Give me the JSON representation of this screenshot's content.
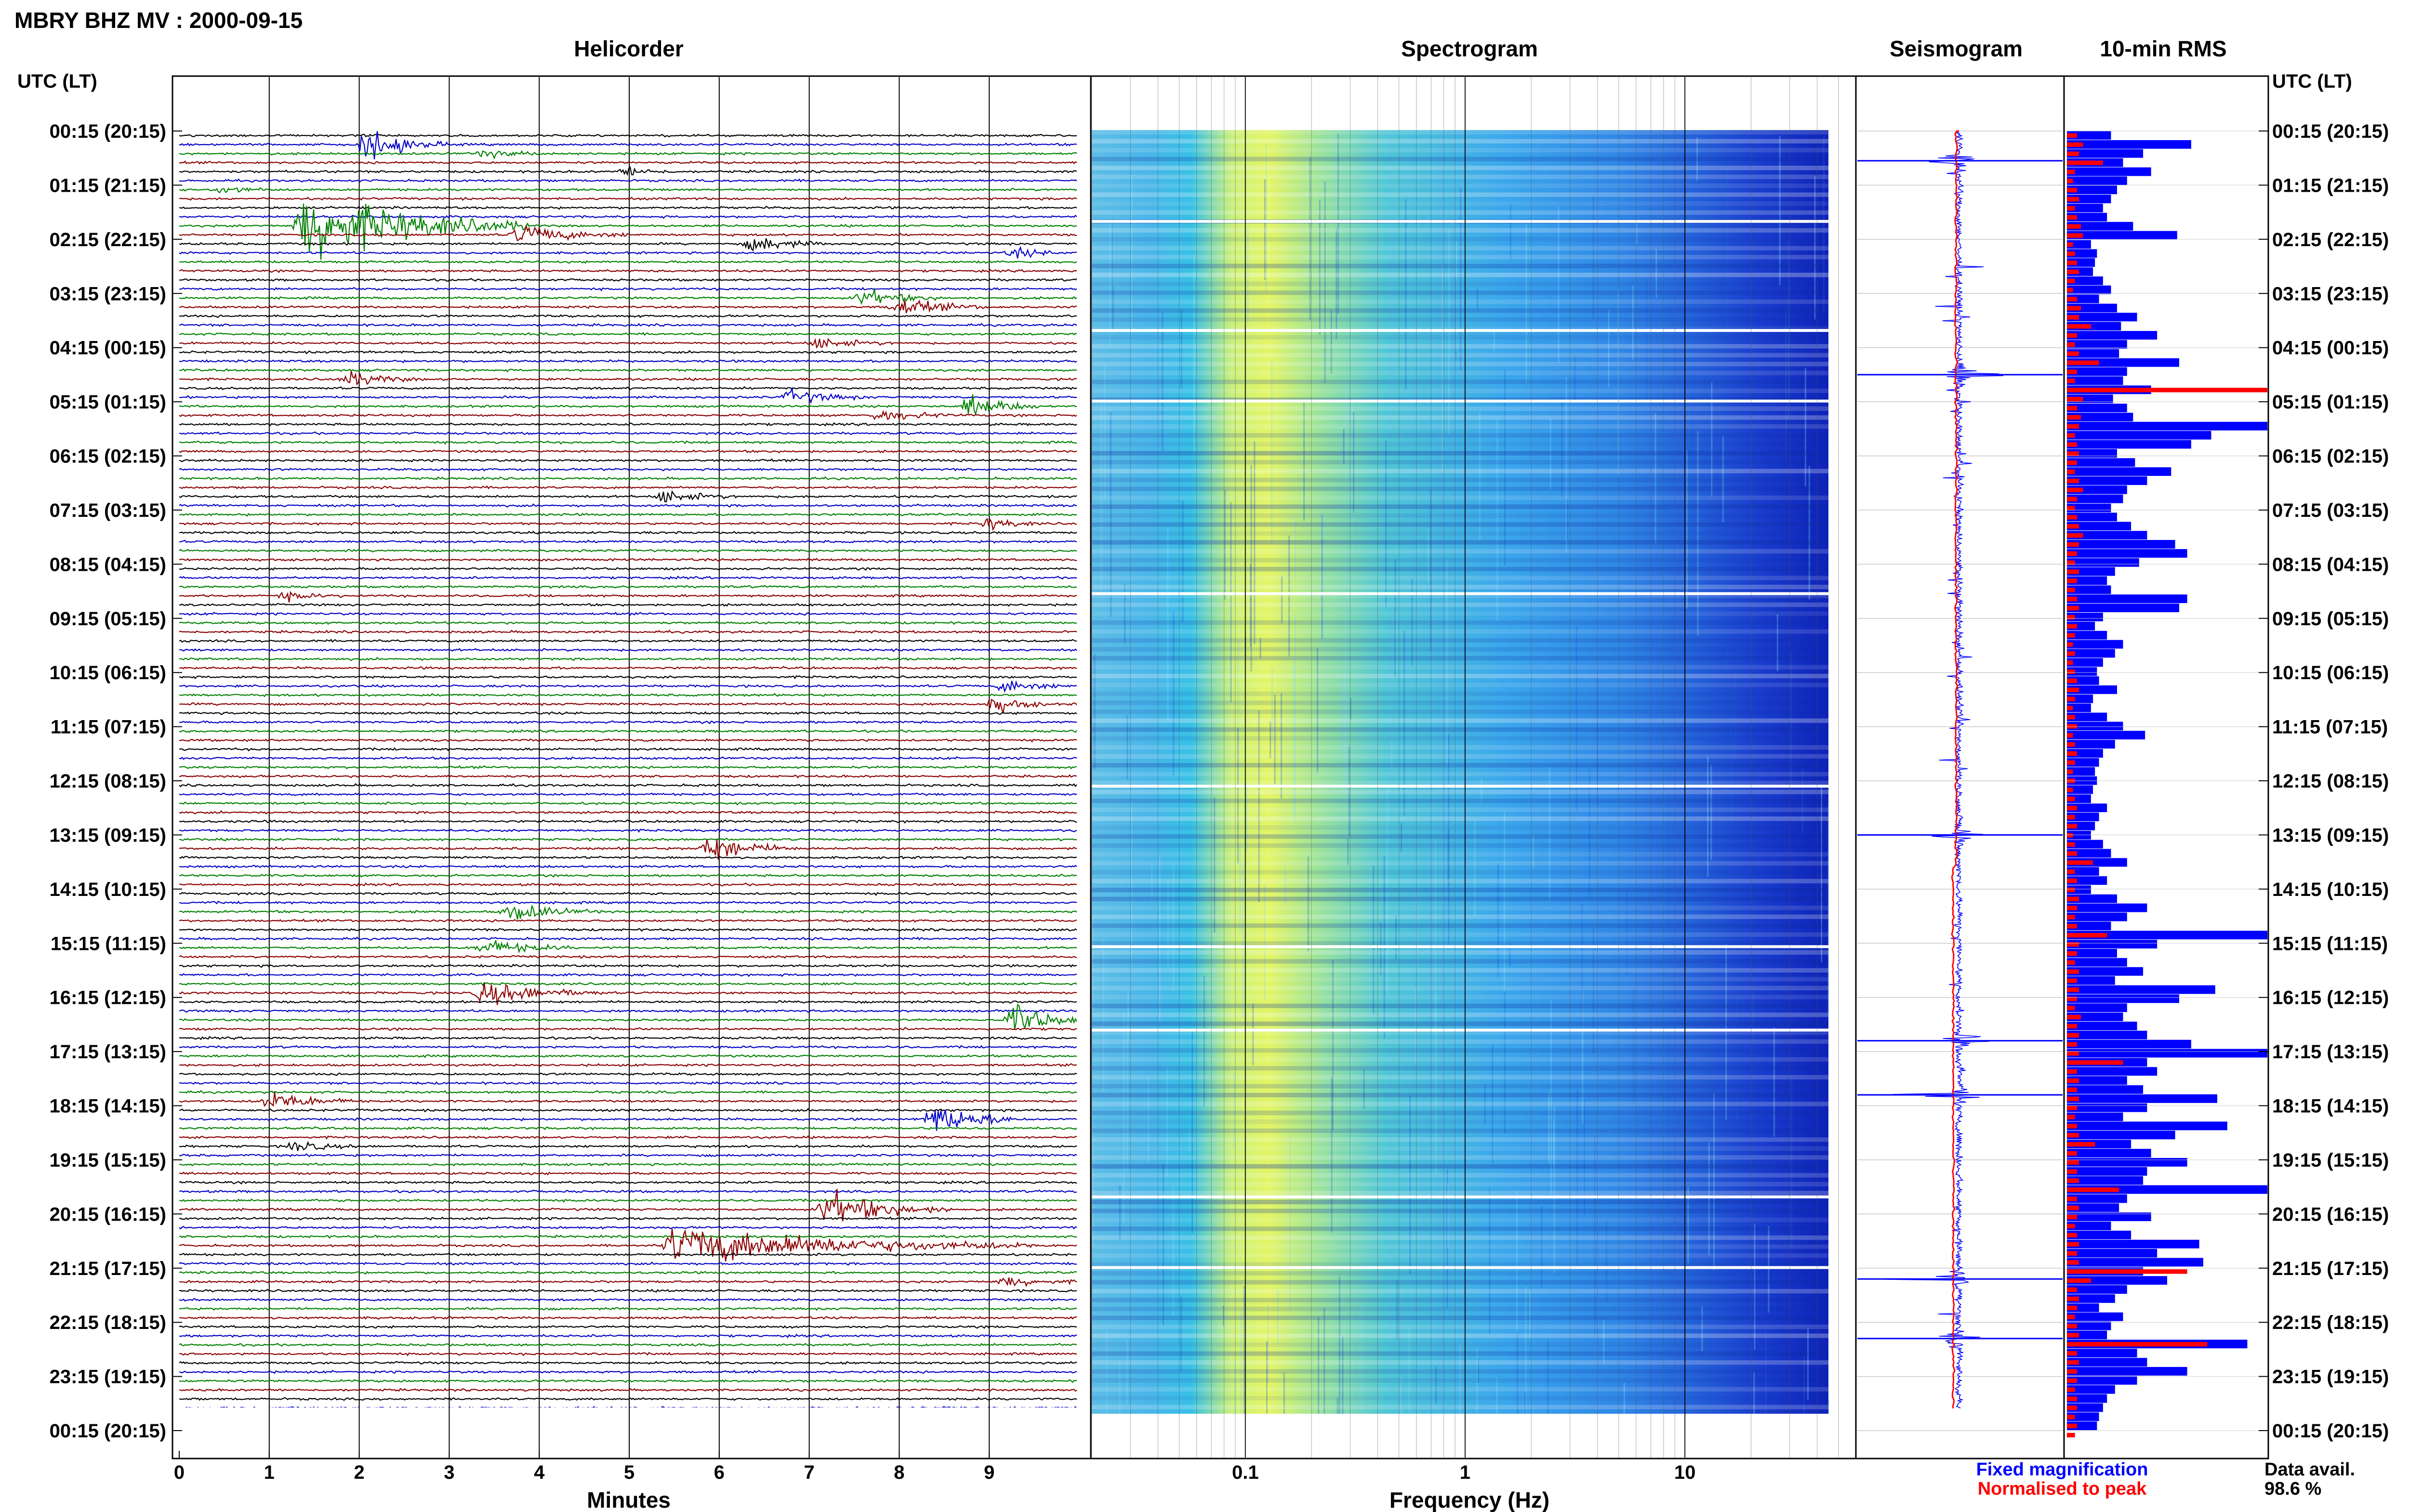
{
  "header": {
    "title": "MBRY BHZ MV : 2000-09-15",
    "time_axis_label": "UTC (LT)"
  },
  "panels": {
    "helicorder": "Helicorder",
    "spectrogram": "Spectrogram",
    "seismogram": "Seismogram",
    "rms": "10-min RMS"
  },
  "legend": {
    "fixed": "Fixed magnification",
    "normalised": "Normalised to peak",
    "availability_label": "Data avail.",
    "availability_value": "98.6 %"
  },
  "colors": {
    "trace_cycle": [
      "#000000",
      "#0000c8",
      "#008000",
      "#8b0000"
    ],
    "rms_fixed": "#0000ff",
    "rms_normalised": "#ff0000",
    "seismogram_trace": "#0000ff",
    "seismogram_envelope": "#ff0000"
  },
  "chart_data": [
    {
      "type": "line",
      "panel": "Helicorder",
      "xlabel": "Minutes",
      "xlim": [
        0,
        10
      ],
      "x_ticks": [
        "0",
        "1",
        "2",
        "3",
        "4",
        "5",
        "6",
        "7",
        "8",
        "9"
      ],
      "y_tick_labels": [
        "00:15 (20:15)",
        "01:15 (21:15)",
        "02:15 (22:15)",
        "03:15 (23:15)",
        "04:15 (00:15)",
        "05:15 (01:15)",
        "06:15 (02:15)",
        "07:15 (03:15)",
        "08:15 (04:15)",
        "09:15 (05:15)",
        "10:15 (06:15)",
        "11:15 (07:15)",
        "12:15 (08:15)",
        "13:15 (09:15)",
        "14:15 (10:15)",
        "15:15 (11:15)",
        "16:15 (12:15)",
        "17:15 (13:15)",
        "18:15 (14:15)",
        "19:15 (15:15)",
        "20:15 (16:15)",
        "21:15 (17:15)",
        "22:15 (18:15)",
        "23:15 (19:15)",
        "00:15 (20:15)"
      ],
      "rows_per_hour": 6,
      "rows": 144,
      "events": [
        {
          "row": 1,
          "minute": 2.1,
          "amplitude": 2.2,
          "width": 0.9
        },
        {
          "row": 2,
          "minute": 3.4,
          "amplitude": 0.6,
          "width": 0.7
        },
        {
          "row": 4,
          "minute": 5.0,
          "amplitude": 0.7,
          "width": 0.5
        },
        {
          "row": 6,
          "minute": 0.5,
          "amplitude": 0.6,
          "width": 0.5
        },
        {
          "row": 10,
          "minute": 1.4,
          "amplitude": 5.5,
          "width": 2.5
        },
        {
          "row": 11,
          "minute": 3.8,
          "amplitude": 1.4,
          "width": 1.2
        },
        {
          "row": 12,
          "minute": 6.4,
          "amplitude": 1.2,
          "width": 0.8
        },
        {
          "row": 13,
          "minute": 9.3,
          "amplitude": 0.7,
          "width": 0.6
        },
        {
          "row": 18,
          "minute": 7.6,
          "amplitude": 1.2,
          "width": 0.9
        },
        {
          "row": 19,
          "minute": 8.0,
          "amplitude": 1.3,
          "width": 1.0
        },
        {
          "row": 23,
          "minute": 7.1,
          "amplitude": 0.8,
          "width": 0.9
        },
        {
          "row": 27,
          "minute": 1.9,
          "amplitude": 1.1,
          "width": 0.8
        },
        {
          "row": 29,
          "minute": 6.8,
          "amplitude": 1.0,
          "width": 0.9
        },
        {
          "row": 31,
          "minute": 7.8,
          "amplitude": 0.9,
          "width": 0.9
        },
        {
          "row": 30,
          "minute": 8.8,
          "amplitude": 1.6,
          "width": 0.8
        },
        {
          "row": 40,
          "minute": 5.4,
          "amplitude": 1.0,
          "width": 0.8
        },
        {
          "row": 43,
          "minute": 9.0,
          "amplitude": 0.8,
          "width": 0.6
        },
        {
          "row": 51,
          "minute": 1.2,
          "amplitude": 0.6,
          "width": 0.6
        },
        {
          "row": 61,
          "minute": 9.2,
          "amplitude": 1.0,
          "width": 0.7
        },
        {
          "row": 63,
          "minute": 9.1,
          "amplitude": 1.2,
          "width": 0.6
        },
        {
          "row": 79,
          "minute": 5.9,
          "amplitude": 2.0,
          "width": 1.0
        },
        {
          "row": 86,
          "minute": 3.7,
          "amplitude": 1.3,
          "width": 1.0
        },
        {
          "row": 90,
          "minute": 3.4,
          "amplitude": 1.2,
          "width": 1.0
        },
        {
          "row": 95,
          "minute": 3.4,
          "amplitude": 1.8,
          "width": 1.3
        },
        {
          "row": 98,
          "minute": 9.3,
          "amplitude": 2.4,
          "width": 0.8
        },
        {
          "row": 107,
          "minute": 1.0,
          "amplitude": 1.4,
          "width": 1.0
        },
        {
          "row": 109,
          "minute": 8.4,
          "amplitude": 2.4,
          "width": 1.0
        },
        {
          "row": 112,
          "minute": 1.3,
          "amplitude": 0.8,
          "width": 0.7
        },
        {
          "row": 119,
          "minute": 7.2,
          "amplitude": 2.6,
          "width": 1.4
        },
        {
          "row": 123,
          "minute": 5.5,
          "amplitude": 3.0,
          "width": 4.0
        },
        {
          "row": 127,
          "minute": 9.2,
          "amplitude": 0.8,
          "width": 0.8
        }
      ]
    },
    {
      "type": "heatmap",
      "panel": "Spectrogram",
      "xlabel": "Frequency (Hz)",
      "x_scale": "log",
      "xlim": [
        0.02,
        60
      ],
      "x_tick_labels": [
        "0.1",
        "1",
        "10"
      ],
      "dominant_band_hz": [
        0.15,
        0.4
      ],
      "rolloff_hz": 25
    },
    {
      "type": "line",
      "panel": "Seismogram",
      "series": [
        {
          "name": "Fixed magnification",
          "color": "#0000ff"
        },
        {
          "name": "Normalised to peak",
          "color": "#ff0000"
        }
      ],
      "large_events_hours": [
        0.55,
        4.5,
        13.0,
        16.8,
        17.8,
        21.2,
        22.3
      ]
    },
    {
      "type": "bar",
      "panel": "10-min RMS",
      "orientation": "horizontal",
      "series": [
        {
          "name": "Fixed magnification",
          "values": [
            0.22,
            0.62,
            0.38,
            0.28,
            0.42,
            0.3,
            0.25,
            0.22,
            0.18,
            0.2,
            0.33,
            0.55,
            0.12,
            0.15,
            0.14,
            0.13,
            0.18,
            0.22,
            0.16,
            0.25,
            0.35,
            0.27,
            0.45,
            0.3,
            0.26,
            0.56,
            0.3,
            0.28,
            0.42,
            0.23,
            0.3,
            0.33,
            1.0,
            0.72,
            0.62,
            0.25,
            0.34,
            0.52,
            0.4,
            0.3,
            0.28,
            0.22,
            0.25,
            0.32,
            0.4,
            0.54,
            0.6,
            0.36,
            0.24,
            0.2,
            0.22,
            0.6,
            0.56,
            0.18,
            0.14,
            0.2,
            0.28,
            0.24,
            0.18,
            0.15,
            0.16,
            0.25,
            0.13,
            0.12,
            0.2,
            0.28,
            0.39,
            0.24,
            0.18,
            0.16,
            0.14,
            0.15,
            0.13,
            0.12,
            0.2,
            0.16,
            0.14,
            0.12,
            0.18,
            0.22,
            0.3,
            0.16,
            0.2,
            0.12,
            0.25,
            0.4,
            0.3,
            0.22,
            1.0,
            0.45,
            0.25,
            0.3,
            0.38,
            0.24,
            0.74,
            0.56,
            0.3,
            0.28,
            0.35,
            0.4,
            0.62,
            1.0,
            0.4,
            0.45,
            0.3,
            0.38,
            0.75,
            0.4,
            0.28,
            0.8,
            0.54,
            0.32,
            0.42,
            0.6,
            0.4,
            0.38,
            1.0,
            0.3,
            0.26,
            0.42,
            0.22,
            0.32,
            0.66,
            0.45,
            0.68,
            0.38,
            0.5,
            0.3,
            0.24,
            0.16,
            0.28,
            0.22,
            0.2,
            0.9,
            0.35,
            0.4,
            0.6,
            0.35,
            0.24,
            0.2,
            0.18,
            0.16,
            0.15
          ]
        },
        {
          "name": "Normalised to peak",
          "values": [
            0.05,
            0.08,
            0.06,
            0.18,
            0.04,
            0.03,
            0.05,
            0.06,
            0.04,
            0.05,
            0.07,
            0.08,
            0.03,
            0.04,
            0.05,
            0.06,
            0.04,
            0.03,
            0.05,
            0.07,
            0.06,
            0.12,
            0.05,
            0.04,
            0.06,
            0.16,
            0.05,
            0.04,
            1.0,
            0.08,
            0.05,
            0.07,
            0.06,
            0.04,
            0.05,
            0.06,
            0.05,
            0.04,
            0.06,
            0.08,
            0.05,
            0.04,
            0.05,
            0.06,
            0.08,
            0.06,
            0.05,
            0.04,
            0.06,
            0.05,
            0.04,
            0.05,
            0.06,
            0.04,
            0.05,
            0.04,
            0.03,
            0.04,
            0.03,
            0.04,
            0.05,
            0.06,
            0.04,
            0.03,
            0.04,
            0.05,
            0.03,
            0.04,
            0.05,
            0.04,
            0.03,
            0.04,
            0.03,
            0.04,
            0.05,
            0.04,
            0.05,
            0.03,
            0.04,
            0.05,
            0.13,
            0.04,
            0.05,
            0.04,
            0.06,
            0.05,
            0.04,
            0.05,
            0.2,
            0.06,
            0.05,
            0.04,
            0.06,
            0.05,
            0.06,
            0.05,
            0.04,
            0.07,
            0.05,
            0.06,
            0.05,
            0.06,
            0.28,
            0.05,
            0.06,
            0.05,
            0.06,
            0.05,
            0.04,
            0.05,
            0.06,
            0.14,
            0.05,
            0.06,
            0.05,
            0.06,
            0.26,
            0.05,
            0.06,
            0.05,
            0.04,
            0.05,
            0.06,
            0.05,
            0.06,
            0.6,
            0.12,
            0.05,
            0.06,
            0.05,
            0.04,
            0.05,
            0.06,
            0.7,
            0.05,
            0.06,
            0.05,
            0.05,
            0.04,
            0.05,
            0.05,
            0.04,
            0.05,
            0.04
          ]
        }
      ]
    }
  ]
}
